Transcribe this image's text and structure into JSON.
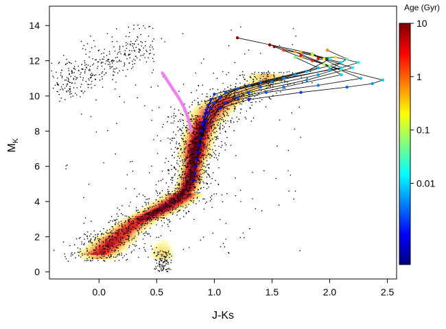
{
  "chart_data": {
    "type": "scatter",
    "title": "",
    "xlabel": "J-Ks",
    "ylabel": "M",
    "ylabel_sub": "K",
    "xlim": [
      -0.43,
      2.58
    ],
    "ylim": [
      15.1,
      -0.4
    ],
    "y_inverted": true,
    "x_ticks": [
      "0.0",
      "0.5",
      "1.0",
      "1.5",
      "2.0",
      "2.5"
    ],
    "y_ticks": [
      "0",
      "2",
      "4",
      "6",
      "8",
      "10",
      "12",
      "14"
    ],
    "grid": false,
    "colorbar": {
      "title": "Age (Gyr)",
      "scale": "log",
      "range": [
        0.0003,
        10
      ],
      "tick_labels": [
        "10",
        "1",
        "0.1",
        "0.01"
      ],
      "colormap": [
        "#00007f",
        "#0000ff",
        "#007fff",
        "#00ffff",
        "#7fff7f",
        "#ffff00",
        "#ff7f00",
        "#ff0000",
        "#7f0000"
      ]
    },
    "density_colormap": [
      "#ffffcc",
      "#ffe680",
      "#fdae61",
      "#f46d43",
      "#e03020",
      "#b2182b",
      "#67001f"
    ],
    "main_sequence_ridge": [
      [
        0.0,
        1.0
      ],
      [
        0.08,
        1.5
      ],
      [
        0.2,
        2.2
      ],
      [
        0.35,
        2.9
      ],
      [
        0.5,
        3.4
      ],
      [
        0.6,
        3.8
      ],
      [
        0.7,
        4.2
      ],
      [
        0.76,
        4.7
      ],
      [
        0.8,
        5.4
      ],
      [
        0.82,
        6.2
      ],
      [
        0.84,
        7.0
      ],
      [
        0.87,
        7.8
      ],
      [
        0.92,
        8.6
      ],
      [
        1.0,
        9.3
      ],
      [
        1.1,
        9.8
      ],
      [
        1.25,
        10.3
      ],
      [
        1.45,
        10.8
      ]
    ],
    "white_dwarf_cloud": {
      "x_range": [
        -0.35,
        0.45
      ],
      "y_range": [
        10.8,
        13.6
      ]
    },
    "pink_track": [
      [
        0.55,
        11.3
      ],
      [
        0.58,
        11.0
      ],
      [
        0.62,
        10.6
      ],
      [
        0.66,
        10.2
      ],
      [
        0.7,
        9.8
      ],
      [
        0.74,
        9.3
      ],
      [
        0.77,
        8.8
      ],
      [
        0.79,
        8.3
      ],
      [
        0.8,
        8.0
      ]
    ],
    "pink_color": "#ee82ee",
    "track_line_color": "#000000",
    "isochrone_tracks": [
      {
        "points": [
          [
            0.82,
            5.2
          ],
          [
            0.86,
            6.8
          ],
          [
            0.92,
            8.2
          ],
          [
            1.05,
            9.3
          ],
          [
            1.3,
            9.8
          ],
          [
            1.75,
            10.2
          ],
          [
            2.15,
            10.5
          ],
          [
            2.37,
            10.7
          ],
          [
            2.46,
            10.9
          ],
          [
            2.1,
            11.5
          ],
          [
            1.75,
            12.2
          ],
          [
            1.52,
            12.8
          ]
        ],
        "ages": [
          0.0006,
          0.0008,
          0.001,
          0.0013,
          0.0016,
          0.002,
          0.003,
          0.005,
          0.009,
          0.05,
          0.3,
          8
        ]
      },
      {
        "points": [
          [
            0.83,
            5.6
          ],
          [
            0.87,
            7.2
          ],
          [
            0.93,
            8.6
          ],
          [
            1.1,
            9.6
          ],
          [
            1.45,
            10.2
          ],
          [
            1.9,
            10.6
          ],
          [
            2.27,
            11.0
          ],
          [
            2.0,
            11.7
          ],
          [
            1.7,
            12.5
          ],
          [
            1.48,
            12.9
          ]
        ],
        "ages": [
          0.0006,
          0.0009,
          0.0012,
          0.0016,
          0.0025,
          0.004,
          0.008,
          0.06,
          0.5,
          9
        ]
      },
      {
        "points": [
          [
            0.84,
            6.0
          ],
          [
            0.88,
            7.6
          ],
          [
            0.95,
            9.0
          ],
          [
            1.2,
            9.9
          ],
          [
            1.6,
            10.5
          ],
          [
            2.1,
            11.2
          ],
          [
            1.95,
            11.8
          ],
          [
            1.75,
            12.3
          ]
        ],
        "ages": [
          0.0007,
          0.001,
          0.0014,
          0.002,
          0.004,
          0.01,
          0.1,
          3
        ]
      },
      {
        "points": [
          [
            0.85,
            6.4
          ],
          [
            0.89,
            8.0
          ],
          [
            0.97,
            9.3
          ],
          [
            1.3,
            10.2
          ],
          [
            1.8,
            10.9
          ],
          [
            2.2,
            11.6
          ],
          [
            1.95,
            12.1
          ],
          [
            1.85,
            12.0
          ]
        ],
        "ages": [
          0.0007,
          0.001,
          0.0015,
          0.0025,
          0.005,
          0.015,
          0.2,
          2
        ]
      },
      {
        "points": [
          [
            0.86,
            6.8
          ],
          [
            0.9,
            8.4
          ],
          [
            1.0,
            9.6
          ],
          [
            1.4,
            10.5
          ],
          [
            1.9,
            11.2
          ],
          [
            2.25,
            11.9
          ],
          [
            2.05,
            12.2
          ],
          [
            1.9,
            12.15
          ]
        ],
        "ages": [
          0.0008,
          0.0012,
          0.0018,
          0.003,
          0.006,
          0.02,
          0.3,
          4
        ]
      },
      {
        "points": [
          [
            0.87,
            7.2
          ],
          [
            0.91,
            8.8
          ],
          [
            1.05,
            9.9
          ],
          [
            1.5,
            10.8
          ],
          [
            2.0,
            11.5
          ],
          [
            2.15,
            12.1
          ],
          [
            1.98,
            12.6
          ]
        ],
        "ages": [
          0.0008,
          0.0013,
          0.002,
          0.004,
          0.008,
          0.04,
          0.7
        ]
      },
      {
        "points": [
          [
            0.88,
            7.6
          ],
          [
            0.93,
            9.2
          ],
          [
            1.1,
            10.2
          ],
          [
            1.6,
            11.0
          ],
          [
            2.1,
            11.6
          ],
          [
            1.85,
            12.4
          ],
          [
            1.2,
            13.3
          ]
        ],
        "ages": [
          0.0009,
          0.0014,
          0.0022,
          0.0045,
          0.01,
          0.08,
          9
        ]
      },
      {
        "points": [
          [
            0.89,
            8.0
          ],
          [
            0.95,
            9.5
          ],
          [
            1.2,
            10.4
          ],
          [
            1.7,
            11.2
          ],
          [
            2.1,
            11.9
          ],
          [
            1.85,
            12.3
          ],
          [
            1.6,
            12.6
          ]
        ],
        "ages": [
          0.001,
          0.0015,
          0.0025,
          0.005,
          0.012,
          0.15,
          1.5
        ]
      },
      {
        "points": [
          [
            0.9,
            8.5
          ],
          [
            0.97,
            9.8
          ],
          [
            1.3,
            10.6
          ],
          [
            1.8,
            11.4
          ],
          [
            2.0,
            12.1
          ],
          [
            1.75,
            12.5
          ]
        ],
        "ages": [
          0.001,
          0.0016,
          0.003,
          0.006,
          0.02,
          0.4
        ]
      },
      {
        "points": [
          [
            0.92,
            9.0
          ],
          [
            1.0,
            10.1
          ],
          [
            1.4,
            10.8
          ],
          [
            1.9,
            11.6
          ],
          [
            1.7,
            12.2
          ]
        ],
        "ages": [
          0.0011,
          0.0018,
          0.0035,
          0.007,
          0.05
        ]
      }
    ]
  }
}
